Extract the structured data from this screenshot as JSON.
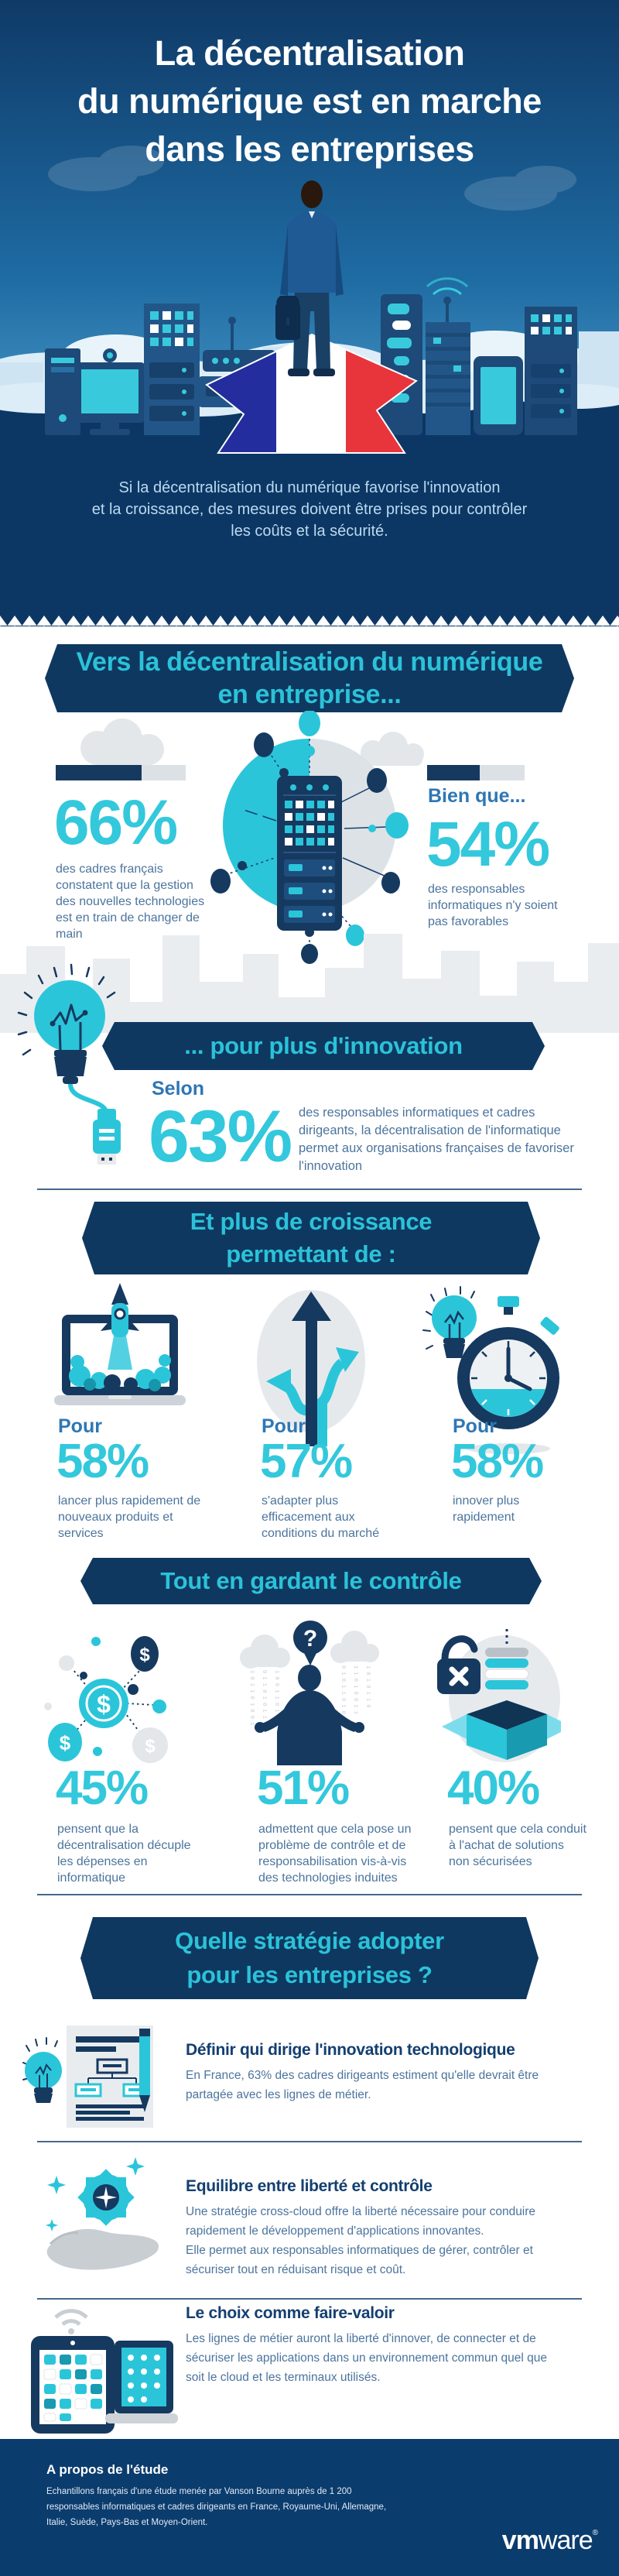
{
  "palette": {
    "navy": "#0c3765",
    "banner_navy": "#0f3860",
    "cyan": "#2bc5da",
    "label_blue": "#2e77b5",
    "body_text": "#4c749d",
    "title_navy": "#133f70",
    "flag_blue": "#232d9e",
    "flag_red": "#e8353b",
    "light_gray": "#e7eaed",
    "bar_gray": "#dce1e6"
  },
  "hero": {
    "title_lines": [
      "La décentralisation",
      "du numérique est en marche",
      "dans les entreprises"
    ],
    "paragraph_lines": [
      "Si la décentralisation du numérique favorise l'innovation",
      "et la croissance, des mesures doivent être prises pour contrôler",
      "les coûts et la sécurité."
    ]
  },
  "section1": {
    "banner_lines": [
      "Vers la décentralisation du numérique",
      "en entreprise..."
    ],
    "left": {
      "value": "66%",
      "pct": 66,
      "caption": "des cadres français constatent que la gestion des nouvelles technologies est en train de changer de main"
    },
    "right": {
      "intro": "Bien que...",
      "value": "54%",
      "pct": 54,
      "caption": "des responsables informatiques n'y soient pas favorables"
    }
  },
  "section2": {
    "banner": "... pour plus d'innovation",
    "intro": "Selon",
    "value": "63%",
    "caption": "des responsables informatiques et cadres dirigeants, la décentralisation de l'informatique permet aux organisations françaises de favoriser l'innovation"
  },
  "section3": {
    "banner_lines": [
      "Et plus de croissance",
      "permettant de :"
    ],
    "items": [
      {
        "label": "Pour",
        "value": "58%",
        "caption": "lancer plus rapidement de nouveaux produits et services",
        "icon": "laptop-rocket-icon"
      },
      {
        "label": "Pour",
        "value": "57%",
        "caption": "s'adapter plus efficacement aux conditions du marché",
        "icon": "diverging-arrows-icon"
      },
      {
        "label": "Pour",
        "value": "58%",
        "caption": "innover plus rapidement",
        "icon": "bulb-stopwatch-icon"
      }
    ]
  },
  "section4": {
    "banner": "Tout en gardant le contrôle",
    "items": [
      {
        "value": "45%",
        "caption": "pensent que la décentralisation décuple les dépenses en informatique",
        "icon": "money-network-icon"
      },
      {
        "value": "51%",
        "caption": "admettent que cela pose un problème de contrôle et de responsabilisation vis-à-vis des technologies induites",
        "icon": "cloud-doubt-icon"
      },
      {
        "value": "40%",
        "caption": "pensent que cela conduit à l'achat de solutions non sécurisées",
        "icon": "unsecured-lock-icon"
      }
    ]
  },
  "section5": {
    "banner_lines": [
      "Quelle stratégie adopter",
      "pour les entreprises ?"
    ],
    "items": [
      {
        "title": "Définir qui dirige l'innovation technologique",
        "body": "En France, 63% des cadres dirigeants estiment qu'elle devrait être partagée avec les lignes de métier.",
        "icon": "document-plan-icon"
      },
      {
        "title": "Equilibre entre liberté et contrôle",
        "body": "Une stratégie cross-cloud offre la liberté nécessaire pour conduire rapidement le développement d'applications innovantes.\nElle permet aux responsables informatiques de gérer, contrôler et sécuriser tout en réduisant risque et coût.",
        "icon": "hand-gear-icon"
      },
      {
        "title": "Le choix comme faire-valoir",
        "body": "Les lignes de métier auront la liberté d'innover, de connecter et de sécuriser les applications dans un environnement commun quel que soit le cloud et les terminaux utilisés.",
        "icon": "devices-choice-icon"
      }
    ]
  },
  "footer": {
    "heading": "A propos de l'étude",
    "body": "Echantillons français d'une étude menée par Vanson Bourne auprès de 1 200 responsables informatiques et cadres dirigeants en France, Royaume-Uni, Allemagne, Italie, Suède, Pays-Bas et Moyen-Orient.",
    "logo_vm": "vm",
    "logo_ware": "ware",
    "logo_reg": "®"
  }
}
